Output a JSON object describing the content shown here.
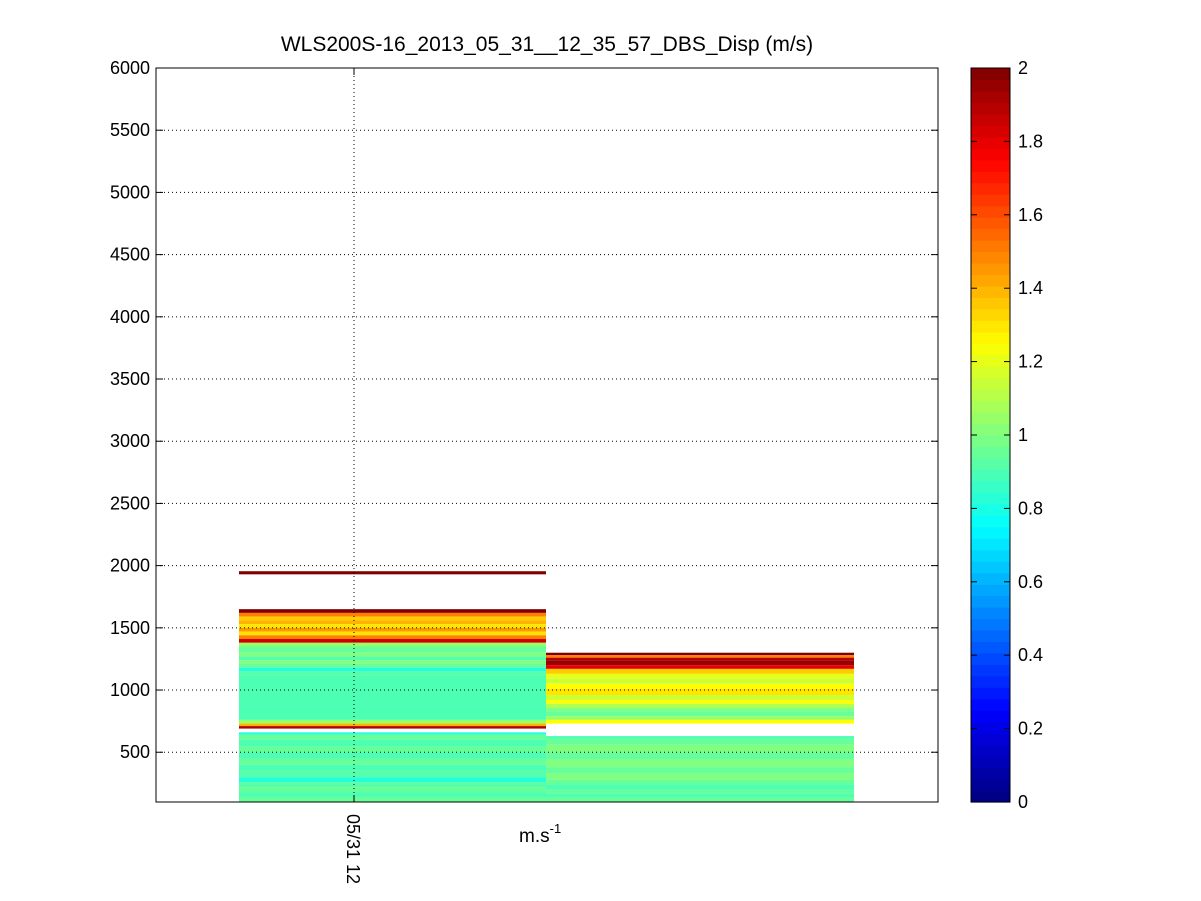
{
  "chart_data": {
    "type": "heatmap",
    "title": "WLS200S-16_2013_05_31__12_35_57_DBS_Disp (m/s)",
    "xlabel": "m.s-1",
    "xlabel_base": "m.s",
    "xlabel_sup": "-1",
    "ylabel": "",
    "ylim": [
      100,
      6000
    ],
    "yticks": [
      500,
      1000,
      1500,
      2000,
      2500,
      3000,
      3500,
      4000,
      4500,
      5000,
      5500,
      6000
    ],
    "xticks": [
      "05/31 12"
    ],
    "grid": true,
    "colormap": "jet",
    "clim": [
      0,
      2
    ],
    "colorbar_ticks": [
      0,
      0.2,
      0.4,
      0.6,
      0.8,
      1,
      1.2,
      1.4,
      1.6,
      1.8,
      2
    ],
    "columns": [
      {
        "bands": [
          {
            "from": 1930,
            "to": 1955,
            "value": 2.0
          },
          {
            "from": 1620,
            "to": 1650,
            "value": 2.0
          },
          {
            "from": 1590,
            "to": 1620,
            "value": 1.5
          },
          {
            "from": 1560,
            "to": 1590,
            "value": 1.35
          },
          {
            "from": 1530,
            "to": 1560,
            "value": 1.4
          },
          {
            "from": 1500,
            "to": 1530,
            "value": 1.3
          },
          {
            "from": 1470,
            "to": 1500,
            "value": 1.45
          },
          {
            "from": 1440,
            "to": 1470,
            "value": 1.3
          },
          {
            "from": 1410,
            "to": 1440,
            "value": 1.5
          },
          {
            "from": 1380,
            "to": 1410,
            "value": 1.85
          },
          {
            "from": 1350,
            "to": 1380,
            "value": 1.05
          },
          {
            "from": 1300,
            "to": 1350,
            "value": 0.95
          },
          {
            "from": 1270,
            "to": 1300,
            "value": 1.0
          },
          {
            "from": 1240,
            "to": 1270,
            "value": 0.92
          },
          {
            "from": 1210,
            "to": 1240,
            "value": 1.0
          },
          {
            "from": 1180,
            "to": 1210,
            "value": 0.95
          },
          {
            "from": 1150,
            "to": 1180,
            "value": 0.82
          },
          {
            "from": 1120,
            "to": 1150,
            "value": 0.92
          },
          {
            "from": 760,
            "to": 1120,
            "value": 0.9
          },
          {
            "from": 730,
            "to": 760,
            "value": 1.05
          },
          {
            "from": 710,
            "to": 730,
            "value": 1.4
          },
          {
            "from": 690,
            "to": 710,
            "value": 1.9
          },
          {
            "from": 640,
            "to": 660,
            "value": 0.82
          },
          {
            "from": 600,
            "to": 640,
            "value": 0.95
          },
          {
            "from": 550,
            "to": 600,
            "value": 0.9
          },
          {
            "from": 500,
            "to": 550,
            "value": 0.95
          },
          {
            "from": 450,
            "to": 500,
            "value": 0.9
          },
          {
            "from": 400,
            "to": 450,
            "value": 0.95
          },
          {
            "from": 350,
            "to": 400,
            "value": 0.9
          },
          {
            "from": 300,
            "to": 350,
            "value": 0.92
          },
          {
            "from": 260,
            "to": 300,
            "value": 0.82
          },
          {
            "from": 220,
            "to": 260,
            "value": 0.92
          },
          {
            "from": 180,
            "to": 220,
            "value": 0.95
          },
          {
            "from": 140,
            "to": 180,
            "value": 0.9
          },
          {
            "from": 100,
            "to": 140,
            "value": 0.95
          }
        ]
      },
      {
        "bands": [
          {
            "from": 1280,
            "to": 1300,
            "value": 2.0
          },
          {
            "from": 1260,
            "to": 1280,
            "value": 1.5
          },
          {
            "from": 1240,
            "to": 1260,
            "value": 1.9
          },
          {
            "from": 1200,
            "to": 1240,
            "value": 1.95
          },
          {
            "from": 1170,
            "to": 1200,
            "value": 1.8
          },
          {
            "from": 1130,
            "to": 1170,
            "value": 1.35
          },
          {
            "from": 1090,
            "to": 1130,
            "value": 1.2
          },
          {
            "from": 1050,
            "to": 1090,
            "value": 1.15
          },
          {
            "from": 1010,
            "to": 1050,
            "value": 1.25
          },
          {
            "from": 960,
            "to": 1010,
            "value": 1.3
          },
          {
            "from": 920,
            "to": 960,
            "value": 1.15
          },
          {
            "from": 890,
            "to": 920,
            "value": 1.25
          },
          {
            "from": 860,
            "to": 890,
            "value": 1.1
          },
          {
            "from": 830,
            "to": 860,
            "value": 1.0
          },
          {
            "from": 790,
            "to": 830,
            "value": 0.95
          },
          {
            "from": 760,
            "to": 790,
            "value": 1.05
          },
          {
            "from": 730,
            "to": 760,
            "value": 1.25
          },
          {
            "from": 610,
            "to": 630,
            "value": 0.9
          },
          {
            "from": 560,
            "to": 610,
            "value": 0.95
          },
          {
            "from": 500,
            "to": 560,
            "value": 1.0
          },
          {
            "from": 440,
            "to": 500,
            "value": 0.95
          },
          {
            "from": 380,
            "to": 440,
            "value": 1.0
          },
          {
            "from": 330,
            "to": 380,
            "value": 0.95
          },
          {
            "from": 280,
            "to": 330,
            "value": 1.0
          },
          {
            "from": 240,
            "to": 280,
            "value": 0.95
          },
          {
            "from": 200,
            "to": 240,
            "value": 0.9
          },
          {
            "from": 170,
            "to": 200,
            "value": 0.95
          },
          {
            "from": 140,
            "to": 170,
            "value": 0.9
          },
          {
            "from": 100,
            "to": 140,
            "value": 0.95
          }
        ]
      }
    ]
  }
}
